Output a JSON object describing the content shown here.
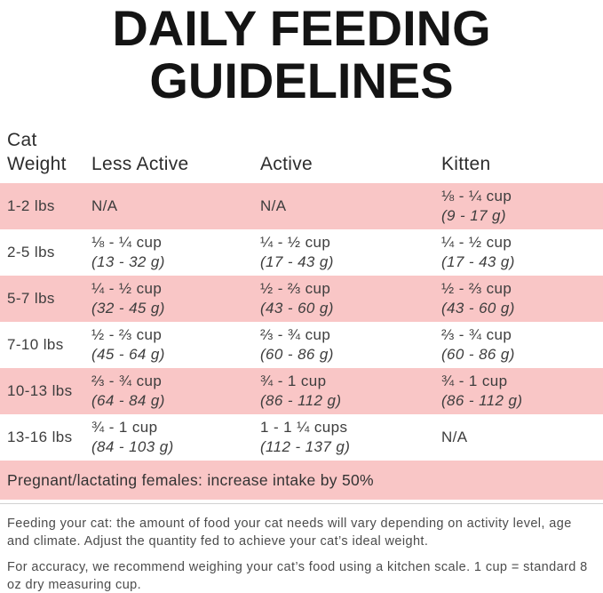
{
  "title": {
    "line1": "DAILY FEEDING",
    "line2": "GUIDELINES"
  },
  "table": {
    "headers": [
      "Cat Weight",
      "Less Active",
      "Active",
      "Kitten"
    ],
    "rows": [
      {
        "weight": "1-2 lbs",
        "cells": [
          {
            "cups": "N/A",
            "grams": ""
          },
          {
            "cups": "N/A",
            "grams": ""
          },
          {
            "cups": "⅛ - ¼ cup",
            "grams": "(9 - 17 g)"
          }
        ]
      },
      {
        "weight": "2-5 lbs",
        "cells": [
          {
            "cups": "⅛ - ¼ cup",
            "grams": "(13 - 32 g)"
          },
          {
            "cups": "¼ - ½ cup",
            "grams": "(17 - 43 g)"
          },
          {
            "cups": "¼ - ½ cup",
            "grams": "(17 - 43 g)"
          }
        ]
      },
      {
        "weight": "5-7 lbs",
        "cells": [
          {
            "cups": "¼ - ½ cup",
            "grams": "(32 - 45 g)"
          },
          {
            "cups": "½ - ⅔ cup",
            "grams": "(43 - 60 g)"
          },
          {
            "cups": "½ - ⅔ cup",
            "grams": "(43 - 60 g)"
          }
        ]
      },
      {
        "weight": "7-10 lbs",
        "cells": [
          {
            "cups": "½ - ⅔ cup",
            "grams": "(45 - 64 g)"
          },
          {
            "cups": "⅔ - ¾ cup",
            "grams": "(60 - 86 g)"
          },
          {
            "cups": "⅔ - ¾ cup",
            "grams": "(60 - 86 g)"
          }
        ]
      },
      {
        "weight": "10-13 lbs",
        "cells": [
          {
            "cups": "⅔ - ¾ cup",
            "grams": "(64 - 84 g)"
          },
          {
            "cups": "¾ - 1 cup",
            "grams": "(86 - 112 g)"
          },
          {
            "cups": "¾ - 1 cup",
            "grams": "(86 - 112 g)"
          }
        ]
      },
      {
        "weight": "13-16 lbs",
        "cells": [
          {
            "cups": "¾ - 1 cup",
            "grams": "(84 - 103 g)"
          },
          {
            "cups": "1 - 1 ¼ cups",
            "grams": "(112 - 137 g)"
          },
          {
            "cups": "N/A",
            "grams": ""
          }
        ]
      }
    ]
  },
  "banner": "Pregnant/lactating females: increase intake by 50%",
  "notes": [
    "Feeding your cat: the amount of food your cat needs will vary depending on activity level, age and climate. Adjust the quantity fed to achieve your cat’s ideal weight.",
    "For accuracy, we recommend weighing your cat’s food using a kitchen scale. 1 cup = standard 8 oz dry measuring cup."
  ],
  "colors": {
    "row_pink": "#f9c6c6",
    "title_black": "#141414",
    "body_text": "#3d3d3d",
    "note_text": "#4c4c4c",
    "divider_gray": "#d2d2d2"
  }
}
